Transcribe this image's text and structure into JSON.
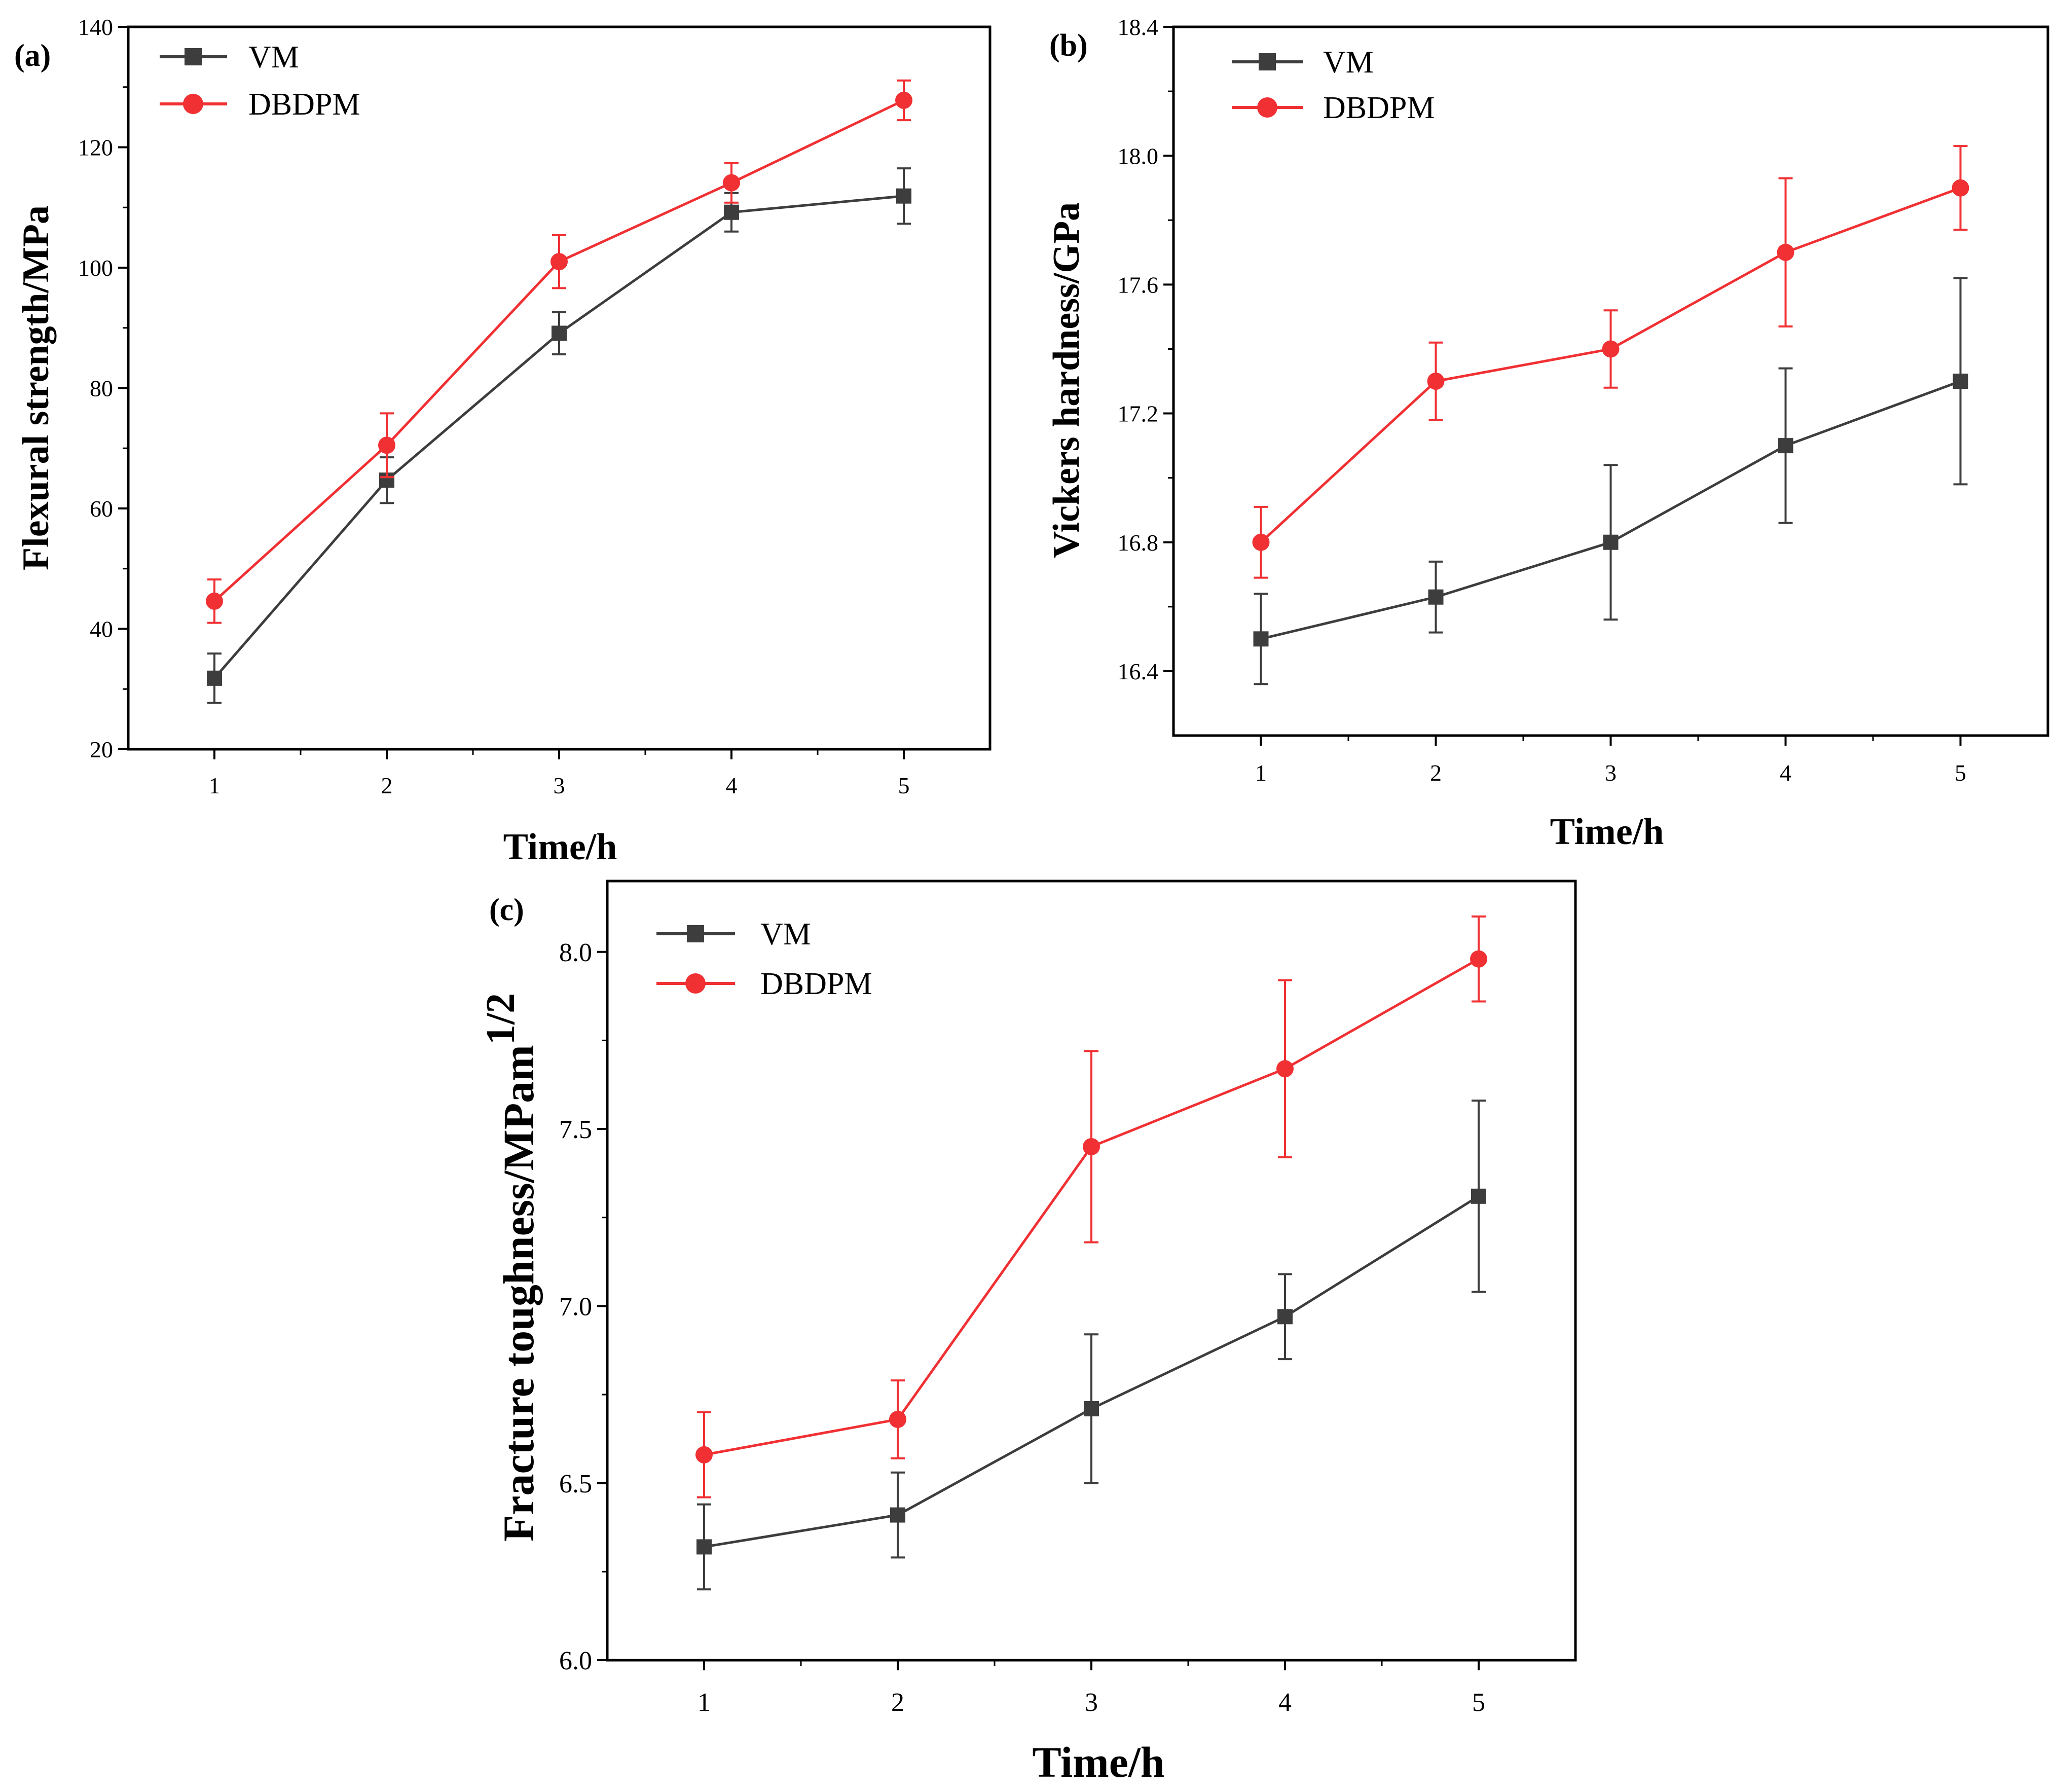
{
  "colors": {
    "vm": "#3d3d3d",
    "dbdpm": "#f03033",
    "axis": "#000000"
  },
  "markers": {
    "vm": "square",
    "dbdpm": "circle"
  },
  "chart_data": [
    {
      "id": "a",
      "panel_label": "(a)",
      "type": "line",
      "xlabel": "Time/h",
      "ylabel": "Flexural strength/MPa",
      "x": [
        1,
        2,
        3,
        4,
        5
      ],
      "xlim": [
        0.5,
        5.5
      ],
      "ylim": [
        20,
        140
      ],
      "xticks": [
        1,
        2,
        3,
        4,
        5
      ],
      "yticks": [
        20,
        40,
        60,
        80,
        100,
        120,
        140
      ],
      "ytick_labels": [
        "20",
        "40",
        "60",
        "80",
        "100",
        "120",
        "140"
      ],
      "legend_position": "top-left",
      "grid": false,
      "series": [
        {
          "name": "VM",
          "values": [
            31.8,
            64.7,
            89.1,
            109.2,
            111.9
          ],
          "errors": [
            4.1,
            3.8,
            3.5,
            3.2,
            4.6
          ]
        },
        {
          "name": "DBDPM",
          "values": [
            44.6,
            70.5,
            101.0,
            114.1,
            127.8
          ],
          "errors": [
            3.6,
            5.3,
            4.4,
            3.3,
            3.3
          ]
        }
      ]
    },
    {
      "id": "b",
      "panel_label": "(b)",
      "type": "line",
      "xlabel": "Time/h",
      "ylabel": "Vickers hardness/GPa",
      "x": [
        1,
        2,
        3,
        4,
        5
      ],
      "xlim": [
        0.5,
        5.5
      ],
      "ylim": [
        16.2,
        18.4
      ],
      "xticks": [
        1,
        2,
        3,
        4,
        5
      ],
      "yticks": [
        16.4,
        16.8,
        17.2,
        17.6,
        18.0,
        18.4
      ],
      "ytick_labels": [
        "16.4",
        "16.8",
        "17.2",
        "17.6",
        "18.0",
        "18.4"
      ],
      "legend_position": "top-left",
      "grid": false,
      "series": [
        {
          "name": "VM",
          "values": [
            16.5,
            16.63,
            16.8,
            17.1,
            17.3
          ],
          "errors": [
            0.14,
            0.11,
            0.24,
            0.24,
            0.32
          ]
        },
        {
          "name": "DBDPM",
          "values": [
            16.8,
            17.3,
            17.4,
            17.7,
            17.9
          ],
          "errors": [
            0.11,
            0.12,
            0.12,
            0.23,
            0.13
          ]
        }
      ]
    },
    {
      "id": "c",
      "panel_label": "(c)",
      "type": "line",
      "xlabel": "Time/h",
      "ylabel": "Fracture toughness/MPam",
      "ylabel_sup": "1/2",
      "x": [
        1,
        2,
        3,
        4,
        5
      ],
      "xlim": [
        0.5,
        5.5
      ],
      "ylim": [
        6.0,
        8.2
      ],
      "xticks": [
        1,
        2,
        3,
        4,
        5
      ],
      "yticks": [
        6.0,
        6.5,
        7.0,
        7.5,
        8.0
      ],
      "ytick_labels": [
        "6.0",
        "6.5",
        "7.0",
        "7.5",
        "8.0"
      ],
      "legend_position": "top-left",
      "grid": false,
      "series": [
        {
          "name": "VM",
          "values": [
            6.32,
            6.41,
            6.71,
            6.97,
            7.31
          ],
          "errors": [
            0.12,
            0.12,
            0.21,
            0.12,
            0.27
          ]
        },
        {
          "name": "DBDPM",
          "values": [
            6.58,
            6.68,
            7.45,
            7.67,
            7.98
          ],
          "errors": [
            0.12,
            0.11,
            0.27,
            0.25,
            0.12
          ]
        }
      ]
    }
  ]
}
